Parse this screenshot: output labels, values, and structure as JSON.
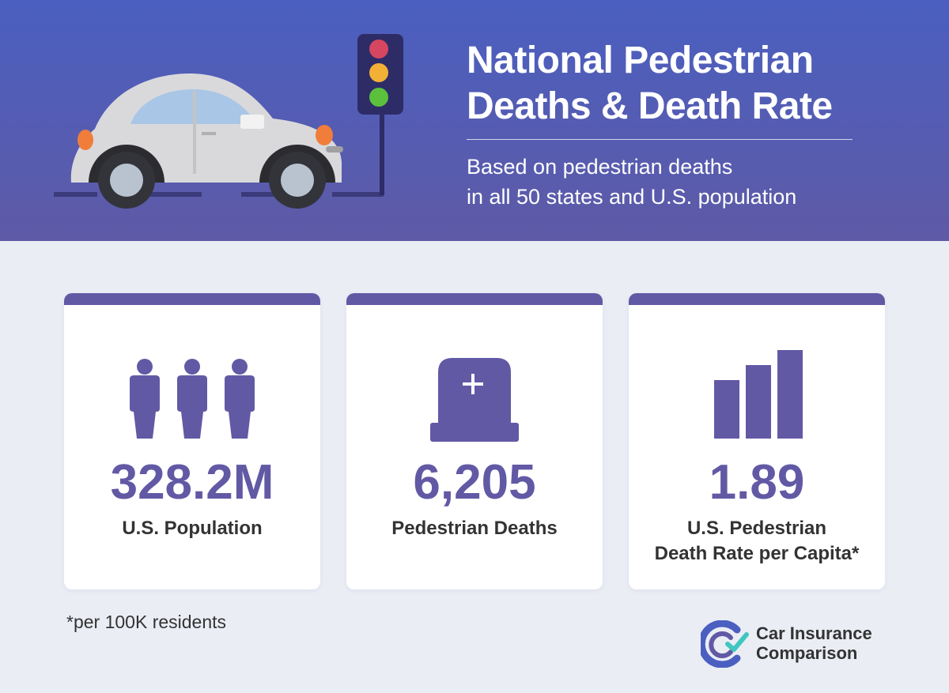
{
  "header": {
    "title_line1": "National Pedestrian",
    "title_line2": "Deaths & Death Rate",
    "subtitle_line1": "Based on pedestrian deaths",
    "subtitle_line2": "in all 50 states and U.S. population"
  },
  "cards": [
    {
      "icon": "people-icon",
      "value": "328.2M",
      "label_line1": "U.S. Population",
      "label_line2": ""
    },
    {
      "icon": "tombstone-icon",
      "value": "6,205",
      "label_line1": "Pedestrian Deaths",
      "label_line2": ""
    },
    {
      "icon": "bar-chart-icon",
      "value": "1.89",
      "label_line1": "U.S. Pedestrian",
      "label_line2": "Death Rate per Capita*"
    }
  ],
  "footnote": "*per 100K residents",
  "logo": {
    "line1": "Car Insurance",
    "line2": "Comparison"
  },
  "colors": {
    "header_top": "#4a5fc0",
    "header_bottom": "#5e5aa6",
    "accent": "#6259a5",
    "background": "#ebedf5",
    "card": "#ffffff",
    "text_dark": "#333333"
  }
}
